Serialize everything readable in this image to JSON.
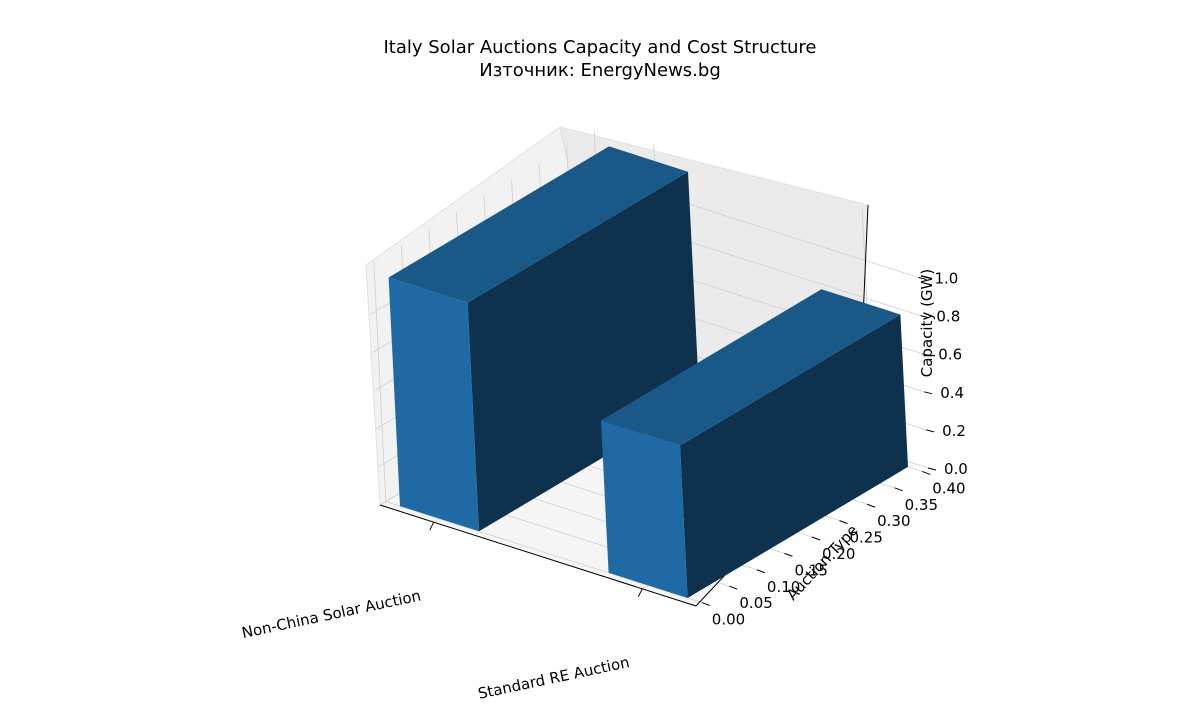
{
  "chart_data": {
    "type": "bar",
    "title": "Italy Solar Auctions Capacity and Cost Structure",
    "subtitle": "Източник: EnergyNews.bg",
    "categories": [
      "Non-China Solar Auction",
      "Standard RE Auction"
    ],
    "values": [
      1.2,
      0.8
    ],
    "xlabel": "",
    "ylabel": "Auction Type",
    "zlabel": "Capacity (GW)",
    "y_ticks": [
      "0.00",
      "0.05",
      "0.10",
      "0.15",
      "0.20",
      "0.25",
      "0.30",
      "0.35",
      "0.40"
    ],
    "z_ticks": [
      "0.0",
      "0.2",
      "0.4",
      "0.6",
      "0.8",
      "1.0"
    ],
    "grid": true,
    "bar_color": "#1f6aa5",
    "bar_side_color": "#0e324e",
    "bar_top_color": "#1a5888"
  }
}
